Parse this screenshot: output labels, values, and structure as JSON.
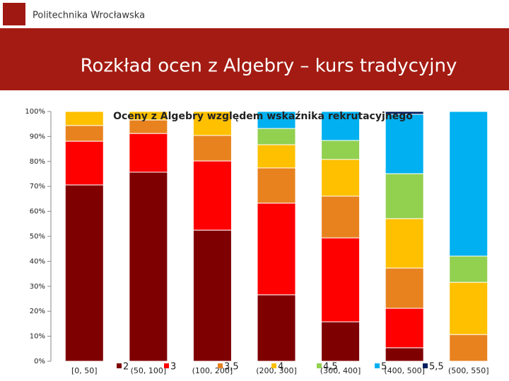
{
  "header": {
    "logo_text": "Politechnika Wrocławska",
    "title": "Rozkład ocen z Algebry – kurs tradycyjny"
  },
  "chart_data": {
    "type": "bar",
    "stacked": true,
    "title": "Oceny z Algebry względem wskaźnika rekrutacyjnego",
    "categories": [
      "[0, 50]",
      "(50, 100]",
      "(100, 200]",
      "(200, 300]",
      "(300, 400]",
      "(400, 500]",
      "(500, 550]"
    ],
    "series": [
      {
        "name": "2",
        "color": "#7f0000",
        "values": [
          70.6,
          75.7,
          52.5,
          26.6,
          15.8,
          5.4,
          0
        ]
      },
      {
        "name": "3",
        "color": "#ff0000",
        "values": [
          17.5,
          15.5,
          27.7,
          36.7,
          33.6,
          15.8,
          0
        ]
      },
      {
        "name": "3,5",
        "color": "#e8821e",
        "values": [
          6.3,
          5.4,
          10.2,
          14.1,
          16.7,
          16.1,
          10.7
        ]
      },
      {
        "name": "4",
        "color": "#ffc000",
        "values": [
          5.6,
          3.4,
          9.6,
          9.3,
          14.7,
          19.8,
          20.9
        ]
      },
      {
        "name": "4,5",
        "color": "#92d050",
        "values": [
          0,
          0,
          0,
          6.5,
          7.6,
          18.0,
          10.5
        ]
      },
      {
        "name": "5",
        "color": "#00b0f0",
        "values": [
          0,
          0,
          0,
          6.8,
          11.6,
          23.8,
          57.9
        ]
      },
      {
        "name": "5,5",
        "color": "#002060",
        "values": [
          0,
          0,
          0,
          0,
          0,
          1.1,
          0
        ]
      }
    ],
    "ylim": [
      0,
      100
    ],
    "yticks": [
      {
        "value": 0,
        "label": "0%"
      },
      {
        "value": 10,
        "label": "10%"
      },
      {
        "value": 20,
        "label": "20%"
      },
      {
        "value": 30,
        "label": "30%"
      },
      {
        "value": 40,
        "label": "40%"
      },
      {
        "value": 50,
        "label": "50%"
      },
      {
        "value": 60,
        "label": "60%"
      },
      {
        "value": 70,
        "label": "70%"
      },
      {
        "value": 80,
        "label": "80%"
      },
      {
        "value": 90,
        "label": "90%"
      },
      {
        "value": 100,
        "label": "100%"
      }
    ]
  }
}
